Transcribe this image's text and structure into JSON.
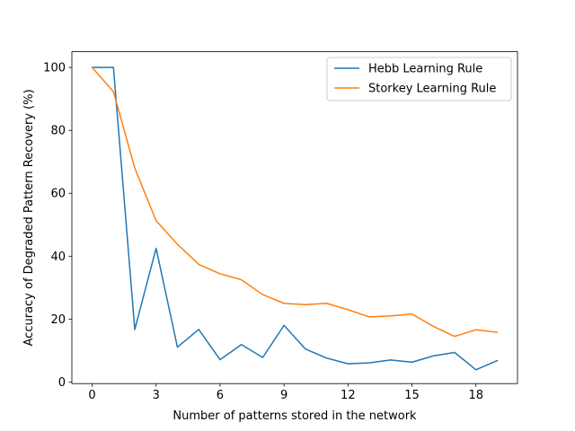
{
  "chart_data": {
    "type": "line",
    "xlabel": "Number of patterns stored in the network",
    "ylabel": "Accuracy of Degraded Pattern Recovery (%)",
    "xlim": [
      -0.95,
      19.95
    ],
    "ylim": [
      -0.5,
      105
    ],
    "xticks": [
      0,
      3,
      6,
      9,
      12,
      15,
      18
    ],
    "yticks": [
      0,
      20,
      40,
      60,
      80,
      100
    ],
    "grid": false,
    "legend_position": "upper right",
    "x": [
      0,
      1,
      2,
      3,
      4,
      5,
      6,
      7,
      8,
      9,
      10,
      11,
      12,
      13,
      14,
      15,
      16,
      17,
      18,
      19
    ],
    "series": [
      {
        "name": "Hebb Learning Rule",
        "color": "#1f77b4",
        "values": [
          100,
          100,
          16.7,
          42.5,
          11.1,
          16.7,
          7.1,
          11.9,
          7.8,
          18.0,
          10.5,
          7.6,
          5.8,
          6.1,
          7.0,
          6.3,
          8.3,
          9.4,
          3.9,
          6.8
        ]
      },
      {
        "name": "Storkey Learning Rule",
        "color": "#ff7f0e",
        "values": [
          100,
          92.3,
          68.0,
          51.3,
          43.8,
          37.4,
          34.4,
          32.5,
          27.8,
          25.0,
          24.6,
          25.0,
          23.0,
          20.7,
          21.0,
          21.6,
          17.7,
          14.5,
          16.6,
          15.8
        ]
      }
    ]
  }
}
